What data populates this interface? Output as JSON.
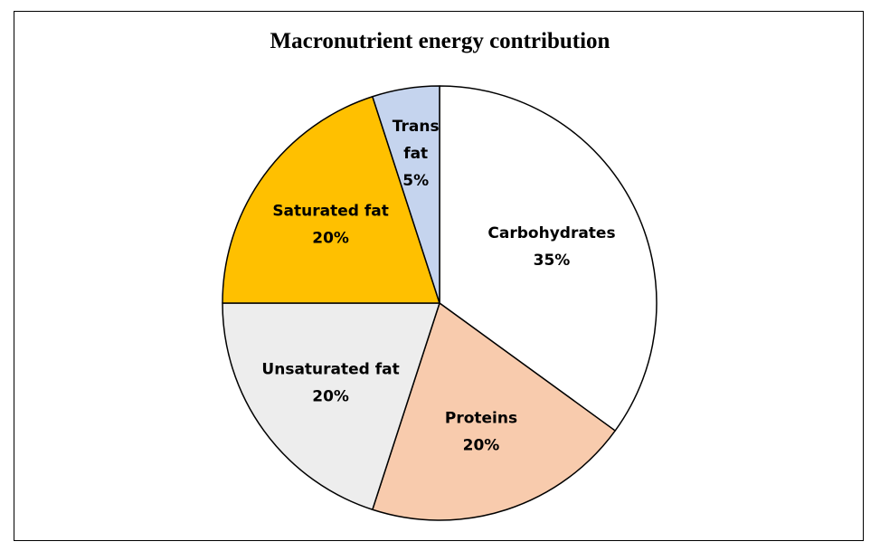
{
  "chart_data": {
    "type": "pie",
    "title": "Macronutrient energy contribution",
    "categories": [
      "Carbohydrates",
      "Proteins",
      "Unsaturated fat",
      "Saturated fat",
      "Trans fat"
    ],
    "values": [
      35,
      20,
      20,
      20,
      5
    ],
    "value_labels": [
      "35%",
      "20%",
      "20%",
      "20%",
      "5%"
    ],
    "colors": [
      "#FFFFFF",
      "#F8CBAD",
      "#EDEDED",
      "#FFC000",
      "#C5D4EE"
    ],
    "start_angle_deg": 0,
    "direction": "clockwise",
    "legend": "none",
    "data_labels": "inside"
  }
}
